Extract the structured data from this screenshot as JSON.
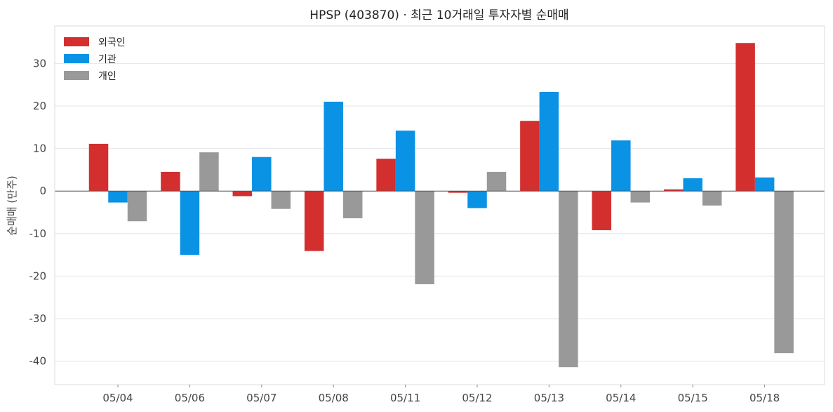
{
  "chart_data": {
    "type": "bar",
    "title": "HPSP (403870) · 최근 10거래일 투자자별 순매매",
    "xlabel": "",
    "ylabel": "순매매 (만주)",
    "ylim": [
      -45.5,
      38.8
    ],
    "yticks": [
      30,
      20,
      10,
      0,
      -10,
      -20,
      -30,
      -40
    ],
    "ytick_labels": [
      "30",
      "20",
      "10",
      "0",
      "-10",
      "-20",
      "-30",
      "-40"
    ],
    "grid": true,
    "legend_position": "top-left",
    "categories": [
      "05/04",
      "05/06",
      "05/07",
      "05/08",
      "05/11",
      "05/12",
      "05/13",
      "05/14",
      "05/15",
      "05/18"
    ],
    "series": [
      {
        "name": "외국인",
        "color": "#d32f2f",
        "values": [
          11.1,
          4.5,
          -1.2,
          -14.1,
          7.6,
          -0.4,
          16.5,
          -9.2,
          0.4,
          34.8
        ]
      },
      {
        "name": "기관",
        "color": "#0a92e4",
        "values": [
          -2.7,
          -15.0,
          8.0,
          21.0,
          14.2,
          -4.0,
          23.3,
          11.9,
          3.0,
          3.2
        ]
      },
      {
        "name": "개인",
        "color": "#999999",
        "values": [
          -7.1,
          9.1,
          -4.2,
          -6.4,
          -21.9,
          4.5,
          -41.4,
          -2.7,
          -3.4,
          -38.1
        ]
      }
    ]
  }
}
